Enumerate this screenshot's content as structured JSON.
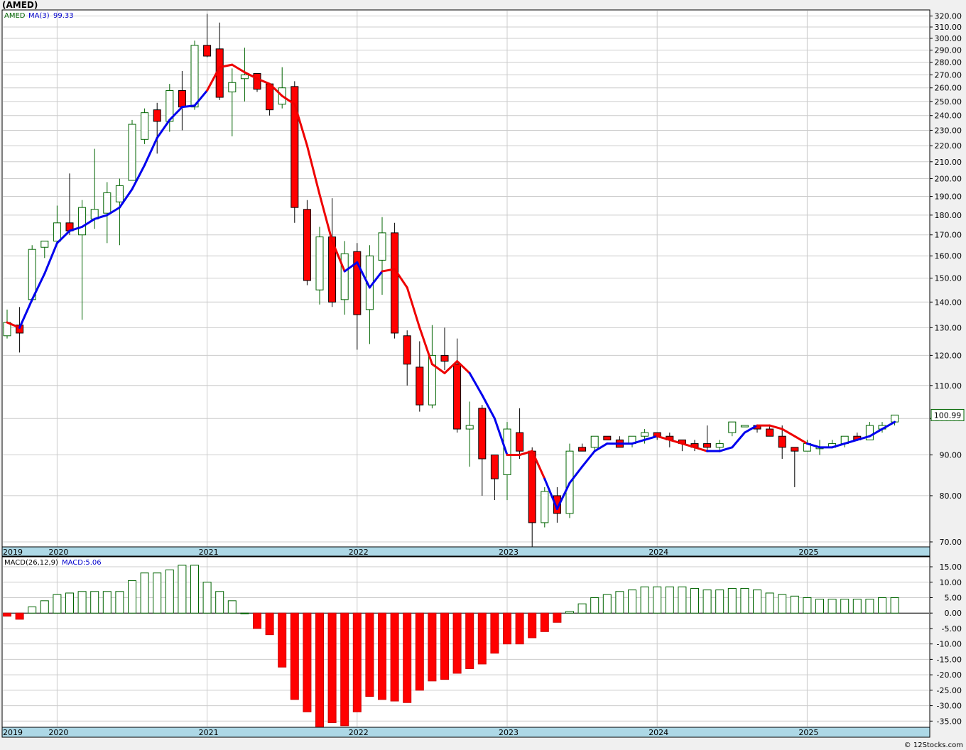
{
  "symbol_title": "(AMED)",
  "price_panel": {
    "legend_symbol": "AMED",
    "ma_label": "MA(3)",
    "ma_value": "99.33",
    "last_price": "100.99"
  },
  "macd_panel": {
    "label": "MACD(26,12,9)",
    "value_label": "MACD:5.06"
  },
  "footer": "© 12Stocks.com",
  "colors": {
    "up_candle_fill": "#ffffff",
    "up_candle_stroke": "#006400",
    "down_candle_fill": "#ff0000",
    "ma_up": "#0000ee",
    "ma_down": "#ee0000",
    "macd_pos_stroke": "#006400",
    "macd_neg_fill": "#ff0000",
    "time_axis_bg": "#add8e6",
    "grid": "#cccccc"
  },
  "chart_data": [
    {
      "type": "candlestick",
      "interval": "monthly",
      "y_scale": "log",
      "ylim": [
        69,
        325
      ],
      "y_ticks": [
        70,
        80,
        90,
        100,
        110,
        120,
        130,
        140,
        150,
        160,
        170,
        180,
        190,
        200,
        210,
        220,
        230,
        240,
        250,
        260,
        270,
        280,
        290,
        300,
        310,
        320
      ],
      "year_labels": [
        "2019",
        "2020",
        "2021",
        "2022",
        "2023",
        "2024",
        "2025"
      ],
      "year_label_months": [
        0,
        4,
        16,
        28,
        40,
        52,
        64
      ],
      "candles": [
        {
          "o": 127,
          "h": 137,
          "l": 126,
          "c": 132
        },
        {
          "o": 131,
          "h": 138,
          "l": 121,
          "c": 128
        },
        {
          "o": 141,
          "h": 165,
          "l": 140,
          "c": 163
        },
        {
          "o": 164,
          "h": 167,
          "l": 159,
          "c": 167
        },
        {
          "o": 167,
          "h": 185,
          "l": 166,
          "c": 176
        },
        {
          "o": 176,
          "h": 203,
          "l": 170,
          "c": 172
        },
        {
          "o": 170,
          "h": 188,
          "l": 133,
          "c": 184
        },
        {
          "o": 178,
          "h": 218,
          "l": 173,
          "c": 183
        },
        {
          "o": 181,
          "h": 198,
          "l": 166,
          "c": 192
        },
        {
          "o": 187,
          "h": 200,
          "l": 165,
          "c": 196
        },
        {
          "o": 199,
          "h": 237,
          "l": 199,
          "c": 234
        },
        {
          "o": 224,
          "h": 245,
          "l": 221,
          "c": 242
        },
        {
          "o": 244,
          "h": 249,
          "l": 215,
          "c": 236
        },
        {
          "o": 236,
          "h": 263,
          "l": 229,
          "c": 258
        },
        {
          "o": 258,
          "h": 273,
          "l": 230,
          "c": 246
        },
        {
          "o": 246,
          "h": 298,
          "l": 244,
          "c": 294
        },
        {
          "o": 294,
          "h": 322,
          "l": 284,
          "c": 285
        },
        {
          "o": 291,
          "h": 314,
          "l": 251,
          "c": 253
        },
        {
          "o": 257,
          "h": 275,
          "l": 226,
          "c": 264
        },
        {
          "o": 267,
          "h": 292,
          "l": 250,
          "c": 270
        },
        {
          "o": 271,
          "h": 270,
          "l": 257,
          "c": 259
        },
        {
          "o": 263,
          "h": 263,
          "l": 240,
          "c": 244
        },
        {
          "o": 248,
          "h": 276,
          "l": 245,
          "c": 260
        },
        {
          "o": 261,
          "h": 265,
          "l": 176,
          "c": 184
        },
        {
          "o": 183,
          "h": 188,
          "l": 147,
          "c": 149
        },
        {
          "o": 145,
          "h": 174,
          "l": 139,
          "c": 169
        },
        {
          "o": 169,
          "h": 189,
          "l": 138,
          "c": 140
        },
        {
          "o": 141,
          "h": 167,
          "l": 135,
          "c": 161
        },
        {
          "o": 162,
          "h": 166,
          "l": 122,
          "c": 135
        },
        {
          "o": 137,
          "h": 165,
          "l": 124,
          "c": 160
        },
        {
          "o": 158,
          "h": 179,
          "l": 143,
          "c": 171
        },
        {
          "o": 171,
          "h": 176,
          "l": 126,
          "c": 128
        },
        {
          "o": 127,
          "h": 129,
          "l": 110,
          "c": 117
        },
        {
          "o": 116,
          "h": 125,
          "l": 102,
          "c": 104
        },
        {
          "o": 104,
          "h": 131,
          "l": 103,
          "c": 120
        },
        {
          "o": 120,
          "h": 130,
          "l": 115,
          "c": 118
        },
        {
          "o": 117,
          "h": 126,
          "l": 96,
          "c": 97
        },
        {
          "o": 97,
          "h": 105,
          "l": 87,
          "c": 98
        },
        {
          "o": 103,
          "h": 104,
          "l": 80,
          "c": 89
        },
        {
          "o": 90,
          "h": 90,
          "l": 79,
          "c": 84
        },
        {
          "o": 85,
          "h": 99,
          "l": 79,
          "c": 97
        },
        {
          "o": 96,
          "h": 103,
          "l": 89,
          "c": 91
        },
        {
          "o": 91,
          "h": 92,
          "l": 69,
          "c": 74
        },
        {
          "o": 74,
          "h": 82,
          "l": 73,
          "c": 81
        },
        {
          "o": 80,
          "h": 82,
          "l": 74,
          "c": 76
        },
        {
          "o": 76,
          "h": 93,
          "l": 75,
          "c": 91
        },
        {
          "o": 92,
          "h": 93,
          "l": 91,
          "c": 91
        },
        {
          "o": 92,
          "h": 95,
          "l": 91,
          "c": 95
        },
        {
          "o": 95,
          "h": 95,
          "l": 94,
          "c": 94
        },
        {
          "o": 94,
          "h": 95,
          "l": 92,
          "c": 92
        },
        {
          "o": 93,
          "h": 95,
          "l": 92,
          "c": 95
        },
        {
          "o": 95,
          "h": 97,
          "l": 93,
          "c": 96
        },
        {
          "o": 96,
          "h": 96,
          "l": 94,
          "c": 95
        },
        {
          "o": 95,
          "h": 96,
          "l": 92,
          "c": 94
        },
        {
          "o": 94,
          "h": 94,
          "l": 91,
          "c": 93
        },
        {
          "o": 93,
          "h": 94,
          "l": 91,
          "c": 92
        },
        {
          "o": 93,
          "h": 98,
          "l": 91,
          "c": 92
        },
        {
          "o": 92,
          "h": 94,
          "l": 91,
          "c": 93
        },
        {
          "o": 96,
          "h": 99,
          "l": 95,
          "c": 99
        },
        {
          "o": 98,
          "h": 98,
          "l": 98,
          "c": 98
        },
        {
          "o": 98,
          "h": 98,
          "l": 96,
          "c": 97
        },
        {
          "o": 97,
          "h": 98,
          "l": 95,
          "c": 95
        },
        {
          "o": 95,
          "h": 98,
          "l": 89,
          "c": 92
        },
        {
          "o": 92,
          "h": 92,
          "l": 82,
          "c": 91
        },
        {
          "o": 91,
          "h": 94,
          "l": 91,
          "c": 93
        },
        {
          "o": 92,
          "h": 94,
          "l": 90,
          "c": 92
        },
        {
          "o": 92,
          "h": 94,
          "l": 92,
          "c": 93
        },
        {
          "o": 93,
          "h": 95,
          "l": 92,
          "c": 95
        },
        {
          "o": 95,
          "h": 96,
          "l": 94,
          "c": 94
        },
        {
          "o": 94,
          "h": 99,
          "l": 94,
          "c": 98
        },
        {
          "o": 97,
          "h": 99,
          "l": 96,
          "c": 98
        },
        {
          "o": 99,
          "h": 101,
          "l": 98,
          "c": 101
        }
      ],
      "ma3": [
        132,
        130,
        141,
        152,
        166,
        172,
        174,
        178,
        180,
        184,
        194,
        208,
        225,
        237,
        246,
        247,
        258,
        276,
        278,
        272,
        267,
        263,
        254,
        248,
        220,
        191,
        167,
        153,
        157,
        146,
        153,
        154,
        146,
        130,
        117,
        114,
        118,
        114,
        107,
        100,
        90,
        90,
        91,
        84,
        77,
        83,
        87,
        91,
        93,
        93,
        93,
        94,
        95,
        94,
        93,
        92,
        91,
        91,
        92,
        96,
        98,
        98,
        97,
        95,
        93,
        92,
        92,
        93,
        94,
        95,
        97,
        99
      ],
      "ma3_down_runs": [
        [
          0,
          1
        ],
        [
          16,
          21
        ],
        [
          21,
          24
        ],
        [
          24,
          27
        ],
        [
          30,
          37
        ],
        [
          40,
          43
        ],
        [
          52,
          56
        ],
        [
          60,
          64
        ]
      ]
    },
    {
      "type": "bar",
      "title": "MACD(26,12,9)",
      "ylim": [
        -37,
        18
      ],
      "y_ticks": [
        15,
        10,
        5,
        0,
        -5,
        -10,
        -15,
        -20,
        -25,
        -30,
        -35
      ],
      "values": [
        -1,
        -2,
        2,
        4,
        6,
        6.5,
        7,
        7,
        7,
        7,
        10.5,
        13,
        13,
        14,
        15.5,
        15.5,
        10,
        7,
        4,
        0,
        -5,
        -7,
        -17.5,
        -28,
        -32,
        -37,
        -35.5,
        -36.5,
        -32,
        -27,
        -28,
        -28.5,
        -29,
        -25,
        -22,
        -21.5,
        -19.5,
        -18,
        -16.5,
        -13,
        -10,
        -10,
        -8,
        -6,
        -3,
        0.5,
        3,
        5,
        6,
        7,
        7.5,
        8.5,
        8.5,
        8.5,
        8.5,
        8,
        7.5,
        7.5,
        8,
        8,
        7.5,
        6.5,
        6,
        5.5,
        5,
        4.5,
        4.5,
        4.5,
        4.5,
        4.5,
        5,
        5
      ]
    }
  ]
}
